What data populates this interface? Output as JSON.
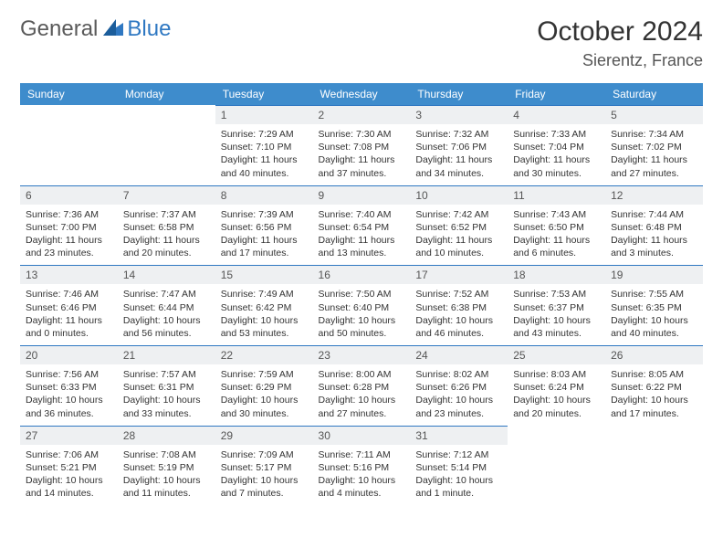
{
  "brand": {
    "part1": "General",
    "part2": "Blue"
  },
  "title": "October 2024",
  "location": "Sierentz, France",
  "colors": {
    "header_bg": "#3e8ccc",
    "daynum_bg": "#eef0f2",
    "rule": "#2f78c2",
    "text": "#333333"
  },
  "dayNames": [
    "Sunday",
    "Monday",
    "Tuesday",
    "Wednesday",
    "Thursday",
    "Friday",
    "Saturday"
  ],
  "leadingBlanks": 2,
  "days": [
    {
      "n": 1,
      "sr": "7:29 AM",
      "ss": "7:10 PM",
      "dl": "11 hours and 40 minutes."
    },
    {
      "n": 2,
      "sr": "7:30 AM",
      "ss": "7:08 PM",
      "dl": "11 hours and 37 minutes."
    },
    {
      "n": 3,
      "sr": "7:32 AM",
      "ss": "7:06 PM",
      "dl": "11 hours and 34 minutes."
    },
    {
      "n": 4,
      "sr": "7:33 AM",
      "ss": "7:04 PM",
      "dl": "11 hours and 30 minutes."
    },
    {
      "n": 5,
      "sr": "7:34 AM",
      "ss": "7:02 PM",
      "dl": "11 hours and 27 minutes."
    },
    {
      "n": 6,
      "sr": "7:36 AM",
      "ss": "7:00 PM",
      "dl": "11 hours and 23 minutes."
    },
    {
      "n": 7,
      "sr": "7:37 AM",
      "ss": "6:58 PM",
      "dl": "11 hours and 20 minutes."
    },
    {
      "n": 8,
      "sr": "7:39 AM",
      "ss": "6:56 PM",
      "dl": "11 hours and 17 minutes."
    },
    {
      "n": 9,
      "sr": "7:40 AM",
      "ss": "6:54 PM",
      "dl": "11 hours and 13 minutes."
    },
    {
      "n": 10,
      "sr": "7:42 AM",
      "ss": "6:52 PM",
      "dl": "11 hours and 10 minutes."
    },
    {
      "n": 11,
      "sr": "7:43 AM",
      "ss": "6:50 PM",
      "dl": "11 hours and 6 minutes."
    },
    {
      "n": 12,
      "sr": "7:44 AM",
      "ss": "6:48 PM",
      "dl": "11 hours and 3 minutes."
    },
    {
      "n": 13,
      "sr": "7:46 AM",
      "ss": "6:46 PM",
      "dl": "11 hours and 0 minutes."
    },
    {
      "n": 14,
      "sr": "7:47 AM",
      "ss": "6:44 PM",
      "dl": "10 hours and 56 minutes."
    },
    {
      "n": 15,
      "sr": "7:49 AM",
      "ss": "6:42 PM",
      "dl": "10 hours and 53 minutes."
    },
    {
      "n": 16,
      "sr": "7:50 AM",
      "ss": "6:40 PM",
      "dl": "10 hours and 50 minutes."
    },
    {
      "n": 17,
      "sr": "7:52 AM",
      "ss": "6:38 PM",
      "dl": "10 hours and 46 minutes."
    },
    {
      "n": 18,
      "sr": "7:53 AM",
      "ss": "6:37 PM",
      "dl": "10 hours and 43 minutes."
    },
    {
      "n": 19,
      "sr": "7:55 AM",
      "ss": "6:35 PM",
      "dl": "10 hours and 40 minutes."
    },
    {
      "n": 20,
      "sr": "7:56 AM",
      "ss": "6:33 PM",
      "dl": "10 hours and 36 minutes."
    },
    {
      "n": 21,
      "sr": "7:57 AM",
      "ss": "6:31 PM",
      "dl": "10 hours and 33 minutes."
    },
    {
      "n": 22,
      "sr": "7:59 AM",
      "ss": "6:29 PM",
      "dl": "10 hours and 30 minutes."
    },
    {
      "n": 23,
      "sr": "8:00 AM",
      "ss": "6:28 PM",
      "dl": "10 hours and 27 minutes."
    },
    {
      "n": 24,
      "sr": "8:02 AM",
      "ss": "6:26 PM",
      "dl": "10 hours and 23 minutes."
    },
    {
      "n": 25,
      "sr": "8:03 AM",
      "ss": "6:24 PM",
      "dl": "10 hours and 20 minutes."
    },
    {
      "n": 26,
      "sr": "8:05 AM",
      "ss": "6:22 PM",
      "dl": "10 hours and 17 minutes."
    },
    {
      "n": 27,
      "sr": "7:06 AM",
      "ss": "5:21 PM",
      "dl": "10 hours and 14 minutes."
    },
    {
      "n": 28,
      "sr": "7:08 AM",
      "ss": "5:19 PM",
      "dl": "10 hours and 11 minutes."
    },
    {
      "n": 29,
      "sr": "7:09 AM",
      "ss": "5:17 PM",
      "dl": "10 hours and 7 minutes."
    },
    {
      "n": 30,
      "sr": "7:11 AM",
      "ss": "5:16 PM",
      "dl": "10 hours and 4 minutes."
    },
    {
      "n": 31,
      "sr": "7:12 AM",
      "ss": "5:14 PM",
      "dl": "10 hours and 1 minute."
    }
  ],
  "labels": {
    "sunrise": "Sunrise:",
    "sunset": "Sunset:",
    "daylight": "Daylight:"
  }
}
